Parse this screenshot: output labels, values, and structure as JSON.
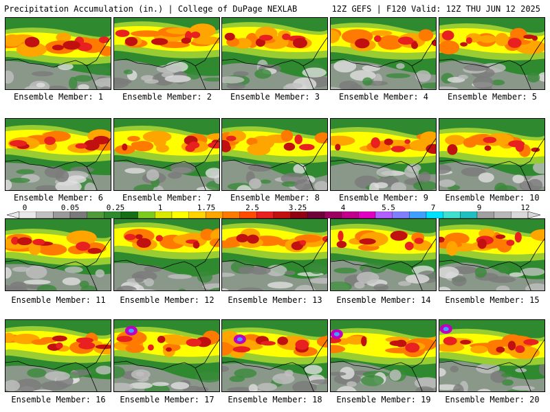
{
  "header": {
    "left": "Precipitation Accumulation (in.) | College of DuPage NEXLAB",
    "right": "12Z GEFS | F120 Valid: 12Z THU JUN 12 2025"
  },
  "colorbar": {
    "labels": [
      "0",
      "0.05",
      "0.25",
      "1",
      "1.75",
      "2.5",
      "3.25",
      "4",
      "5.5",
      "7",
      "9",
      "12"
    ],
    "colors": [
      "#e8e8e8",
      "#c0c0c0",
      "#9a9a9a",
      "#7a7a7a",
      "#4f9a3a",
      "#2f8a2f",
      "#156f15",
      "#7ccc20",
      "#d8e800",
      "#ffff00",
      "#ffd200",
      "#ffa500",
      "#ff7a00",
      "#ff4a00",
      "#e82020",
      "#c01010",
      "#900010",
      "#70003a",
      "#9a0060",
      "#c0008a",
      "#e000c0",
      "#b060ff",
      "#8080ff",
      "#40a0ff",
      "#00e0ff",
      "#40e0d0",
      "#20c0c0",
      "#a0a0a0",
      "#b8b8b8",
      "#d8d8d8"
    ]
  },
  "members": [
    {
      "label": "Ensemble Member: 1"
    },
    {
      "label": "Ensemble Member: 2"
    },
    {
      "label": "Ensemble Member: 3"
    },
    {
      "label": "Ensemble Member: 4"
    },
    {
      "label": "Ensemble Member: 5"
    },
    {
      "label": "Ensemble Member: 6"
    },
    {
      "label": "Ensemble Member: 7"
    },
    {
      "label": "Ensemble Member: 8"
    },
    {
      "label": "Ensemble Member: 9"
    },
    {
      "label": "Ensemble Member: 10"
    },
    {
      "label": "Ensemble Member: 11"
    },
    {
      "label": "Ensemble Member: 12"
    },
    {
      "label": "Ensemble Member: 13"
    },
    {
      "label": "Ensemble Member: 14"
    },
    {
      "label": "Ensemble Member: 15"
    },
    {
      "label": "Ensemble Member: 16"
    },
    {
      "label": "Ensemble Member: 17"
    },
    {
      "label": "Ensemble Member: 18"
    },
    {
      "label": "Ensemble Member: 19"
    },
    {
      "label": "Ensemble Member: 20"
    }
  ]
}
